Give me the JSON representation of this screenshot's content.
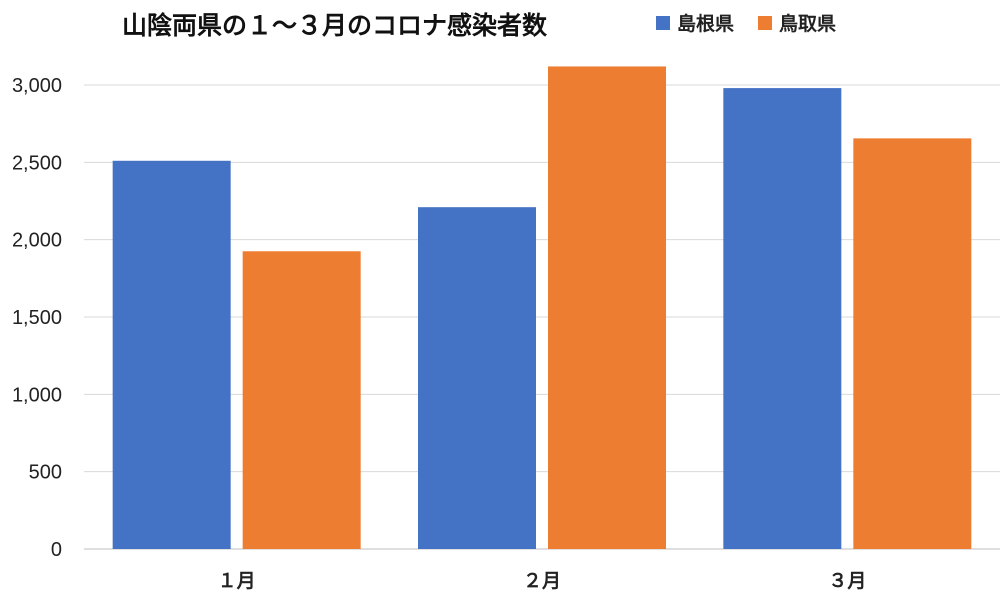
{
  "chart_data": {
    "type": "bar",
    "title": "山陰両県の１～３月のコロナ感染者数",
    "categories": [
      "１月",
      "２月",
      "３月"
    ],
    "series": [
      {
        "name": "島根県",
        "color": "#4472C4",
        "values": [
          2510,
          2210,
          2980
        ]
      },
      {
        "name": "鳥取県",
        "color": "#ED7D31",
        "values": [
          1925,
          3120,
          2655
        ]
      }
    ],
    "ylim": [
      0,
      3000
    ],
    "yticks": [
      "0",
      "500",
      "1,000",
      "1,500",
      "2,000",
      "2,500",
      "3,000"
    ],
    "ytick_values": [
      0,
      500,
      1000,
      1500,
      2000,
      2500,
      3000
    ],
    "grid": true,
    "legend_position": "top-right"
  }
}
